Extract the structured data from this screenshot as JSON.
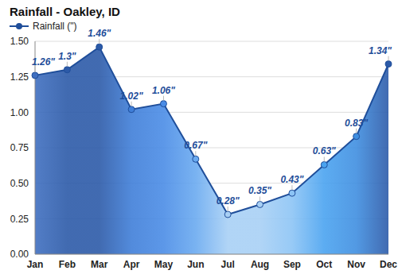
{
  "chart_data": {
    "type": "area",
    "title": "Rainfall - Oakley, ID",
    "categories": [
      "Jan",
      "Feb",
      "Mar",
      "Apr",
      "May",
      "Jun",
      "Jul",
      "Aug",
      "Sep",
      "Oct",
      "Nov",
      "Dec"
    ],
    "series": [
      {
        "name": "Rainfall (\")",
        "color": "#1f4e9a",
        "values": [
          1.26,
          1.3,
          1.46,
          1.02,
          1.06,
          0.67,
          0.28,
          0.35,
          0.43,
          0.63,
          0.83,
          1.34
        ],
        "value_labels": [
          "1.26\"",
          "1.3\"",
          "1.46\"",
          "1.02\"",
          "1.06\"",
          "0.67\"",
          "0.28\"",
          "0.35\"",
          "0.43\"",
          "0.63\"",
          "0.83\"",
          "1.34\""
        ],
        "colors": [
          "#3f6fc0",
          "#2c5aa8",
          "#2c5aa8",
          "#3f7ed8",
          "#4a8ce6",
          "#6aaaf0",
          "#a8d0f5",
          "#a8d0f5",
          "#8cc4f5",
          "#4aa3f0",
          "#3f8ee0",
          "#2c5aa8"
        ]
      }
    ],
    "ylim": [
      0,
      1.5
    ],
    "yticks": [
      {
        "value": 0,
        "label": "0.00"
      },
      {
        "value": 0.25,
        "label": "0.25"
      },
      {
        "value": 0.5,
        "label": "0.50"
      },
      {
        "value": 0.75,
        "label": "0.75"
      },
      {
        "value": 1,
        "label": "1.00"
      },
      {
        "value": 1.25,
        "label": "1.25"
      },
      {
        "value": 1.5,
        "label": "1.50"
      }
    ],
    "grid": true,
    "legend": "top-left",
    "data_labels": true,
    "marker": "circle"
  }
}
